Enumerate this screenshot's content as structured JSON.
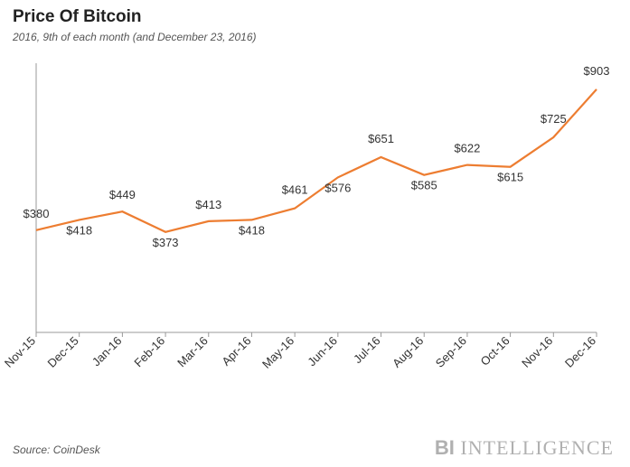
{
  "title": "Price Of Bitcoin",
  "title_fontsize": 19,
  "subtitle": "2016, 9th of each month (and December 23, 2016)",
  "subtitle_fontsize": 12,
  "source_label": "Source: CoinDesk",
  "brand_prefix": "BI",
  "brand_suffix": " INTELLIGENCE",
  "chart": {
    "type": "line",
    "background_color": "#ffffff",
    "axis_color": "#999999",
    "line_color": "#ed7d31",
    "line_width": 2.2,
    "marker": "none",
    "label_fontsize": 13,
    "label_color": "#333333",
    "xlabel_rotate_deg": -45,
    "ymin": 0,
    "ymax": 1000,
    "grid": false,
    "categories": [
      "Nov-15",
      "Dec-15",
      "Jan-16",
      "Feb-16",
      "Mar-16",
      "Apr-16",
      "May-16",
      "Jun-16",
      "Jul-16",
      "Aug-16",
      "Sep-16",
      "Oct-16",
      "Nov-16",
      "Dec-16"
    ],
    "values": [
      380,
      418,
      449,
      373,
      413,
      418,
      461,
      576,
      651,
      585,
      622,
      615,
      725,
      903
    ],
    "label_prefix": "$",
    "data_labels": [
      "$380",
      "$418",
      "$449",
      "$373",
      "$413",
      "$418",
      "$461",
      "$576",
      "$651",
      "$585",
      "$622",
      "$615",
      "$725",
      "$903"
    ],
    "label_offsets_y": [
      -14,
      16,
      -14,
      16,
      -14,
      16,
      -16,
      16,
      -16,
      16,
      -14,
      16,
      -16,
      -16
    ]
  }
}
